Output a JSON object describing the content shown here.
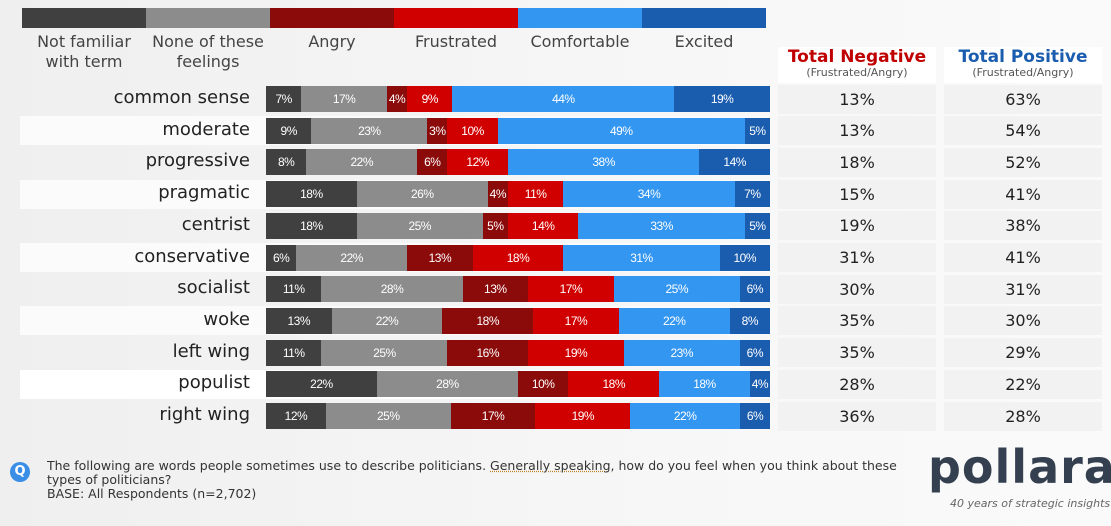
{
  "chart_data": {
    "type": "bar",
    "stacked": true,
    "orientation": "horizontal",
    "legend": [
      "Not familiar with term",
      "None of these feelings",
      "Angry",
      "Frustrated",
      "Comfortable",
      "Excited"
    ],
    "colors": [
      "#404040",
      "#8c8c8c",
      "#8b0b0b",
      "#d10000",
      "#3396f0",
      "#1a5cae"
    ],
    "categories": [
      "common sense",
      "moderate",
      "progressive",
      "pragmatic",
      "centrist",
      "conservative",
      "socialist",
      "woke",
      "left wing",
      "populist",
      "right wing"
    ],
    "series": [
      {
        "name": "Not familiar with term",
        "values": [
          7,
          9,
          8,
          18,
          18,
          6,
          11,
          13,
          11,
          22,
          12
        ]
      },
      {
        "name": "None of these feelings",
        "values": [
          17,
          23,
          22,
          26,
          25,
          22,
          28,
          22,
          25,
          28,
          25
        ]
      },
      {
        "name": "Angry",
        "values": [
          4,
          3,
          6,
          4,
          5,
          13,
          13,
          18,
          16,
          10,
          17
        ]
      },
      {
        "name": "Frustrated",
        "values": [
          9,
          10,
          12,
          11,
          14,
          18,
          17,
          17,
          19,
          18,
          19
        ]
      },
      {
        "name": "Comfortable",
        "values": [
          44,
          49,
          38,
          34,
          33,
          31,
          25,
          22,
          23,
          18,
          22
        ]
      },
      {
        "name": "Excited",
        "values": [
          19,
          5,
          14,
          7,
          5,
          10,
          6,
          8,
          6,
          4,
          6
        ]
      }
    ],
    "table": {
      "negative": {
        "title": "Total Negative",
        "subtitle": "(Frustrated/Angry)",
        "values": [
          "13%",
          "13%",
          "18%",
          "15%",
          "19%",
          "31%",
          "30%",
          "35%",
          "35%",
          "28%",
          "36%"
        ]
      },
      "positive": {
        "title": "Total Positive",
        "subtitle": "(Frustrated/Angry)",
        "values": [
          "63%",
          "54%",
          "52%",
          "41%",
          "38%",
          "41%",
          "31%",
          "30%",
          "29%",
          "22%",
          "28%"
        ]
      }
    }
  },
  "footer": {
    "q": "Q",
    "text1": "The following are words people sometimes use to describe politicians. ",
    "text_underlined": "Generally speaking,",
    "text2": " how do you feel when you think about these types of politicians?",
    "base": "BASE: All Respondents (n=2,702)"
  },
  "logo": {
    "name": "pollara",
    "tagline": "40 years of strategic insights"
  }
}
